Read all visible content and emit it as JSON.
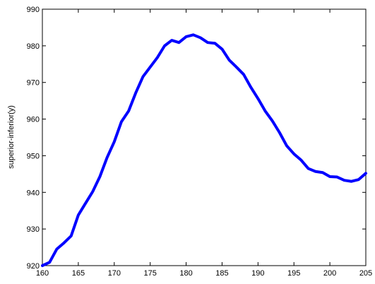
{
  "chart_data": {
    "type": "line",
    "title": "",
    "xlabel": "",
    "ylabel": "superior-inferior(y)",
    "xlim": [
      160,
      205
    ],
    "ylim": [
      920,
      990
    ],
    "xticks": [
      160,
      165,
      170,
      175,
      180,
      185,
      190,
      195,
      200,
      205
    ],
    "yticks": [
      920,
      930,
      940,
      950,
      960,
      970,
      980,
      990
    ],
    "xtick_labels": [
      "160",
      "165",
      "170",
      "175",
      "180",
      "185",
      "190",
      "195",
      "200",
      "205"
    ],
    "ytick_labels": [
      "920",
      "930",
      "940",
      "950",
      "960",
      "970",
      "980",
      "990"
    ],
    "grid": false,
    "series": [
      {
        "color": "#0000ff",
        "x": [
          160,
          161,
          162,
          163,
          164,
          165,
          166,
          167,
          168,
          169,
          170,
          171,
          172,
          173,
          174,
          175,
          176,
          177,
          178,
          179,
          180,
          181,
          182,
          183,
          184,
          185,
          186,
          187,
          188,
          189,
          190,
          191,
          192,
          193,
          194,
          195,
          196,
          197,
          198,
          199,
          200,
          201,
          202,
          203,
          204,
          205
        ],
        "y": [
          920.0,
          920.9,
          924.5,
          926.2,
          928.1,
          933.8,
          937.0,
          940.2,
          944.3,
          949.5,
          953.8,
          959.3,
          962.2,
          967.2,
          971.6,
          974.2,
          976.8,
          980.0,
          981.5,
          980.9,
          982.5,
          983.0,
          982.2,
          980.9,
          980.7,
          979.1,
          976.1,
          974.2,
          972.2,
          968.7,
          965.6,
          962.2,
          959.5,
          956.3,
          952.7,
          950.5,
          948.8,
          946.5,
          945.7,
          945.4,
          944.3,
          944.2,
          943.3,
          943.0,
          943.5,
          945.2
        ]
      }
    ]
  }
}
